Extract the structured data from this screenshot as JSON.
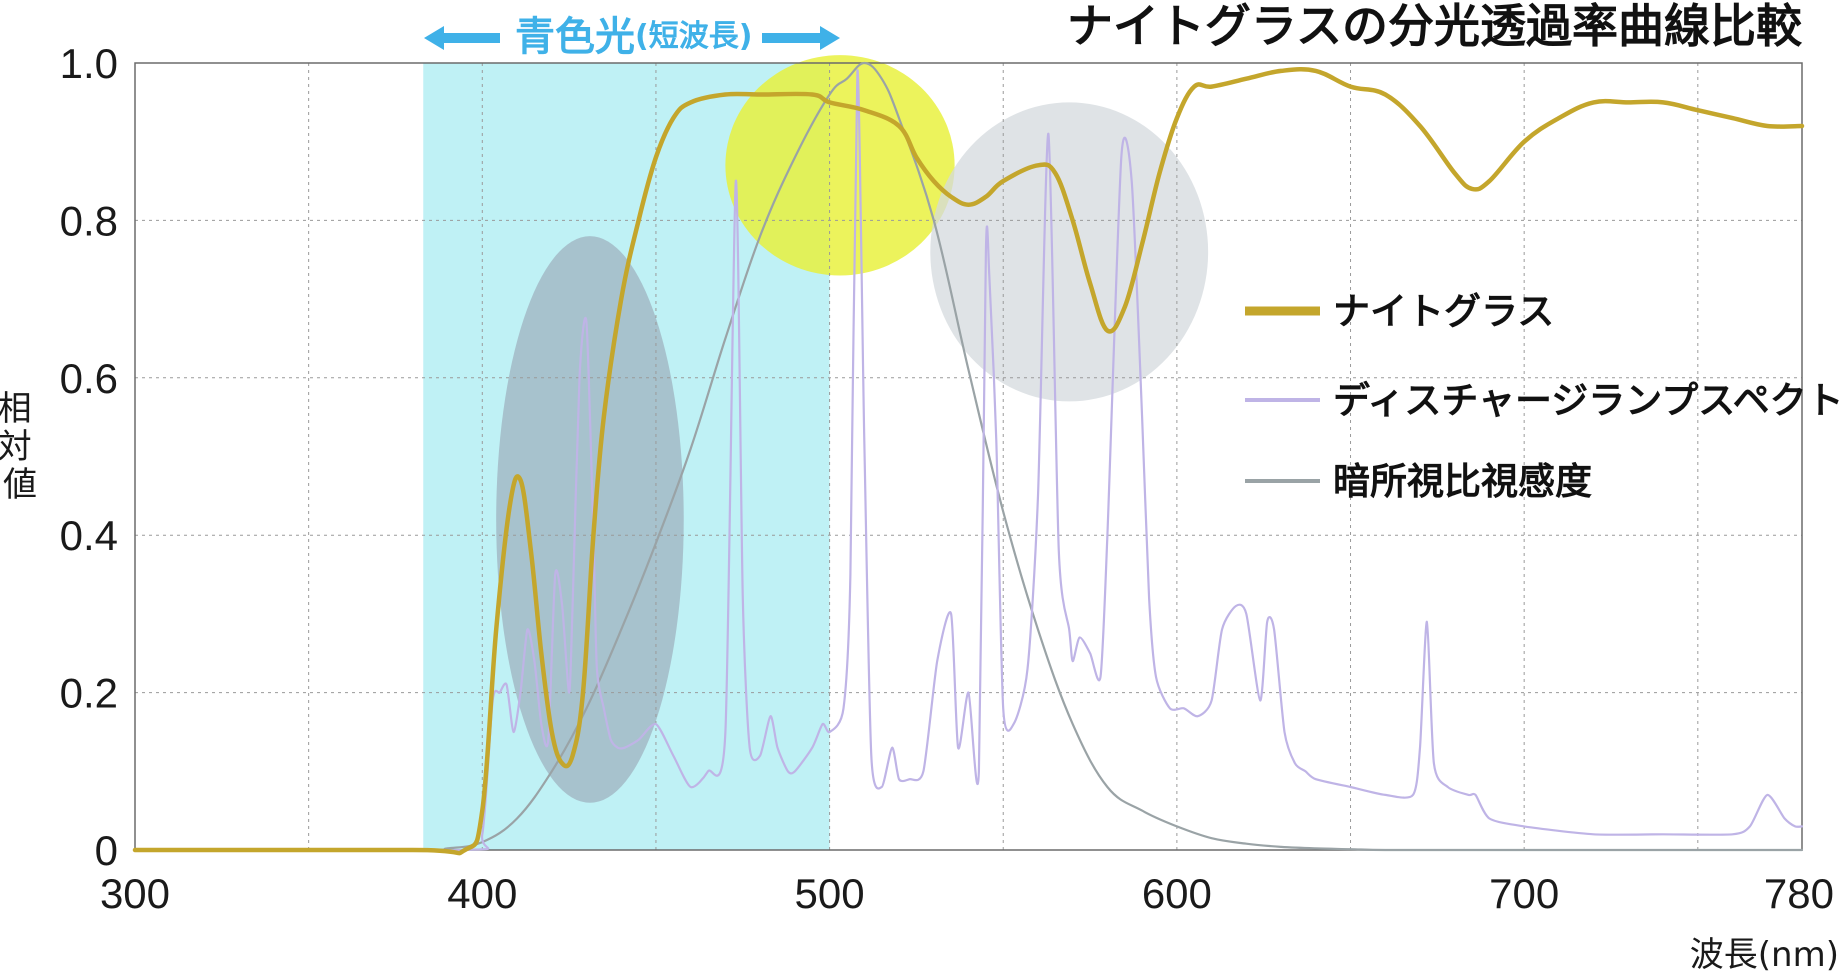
{
  "chart_data": {
    "type": "line",
    "title": "ナイトグラスの分光透過率曲線比較",
    "xlabel": "波長(nm)",
    "ylabel": "相対値",
    "xlim": [
      300,
      780
    ],
    "ylim": [
      0,
      1.0
    ],
    "x_ticks": [
      300,
      400,
      500,
      600,
      700,
      780
    ],
    "x_tick_labels": [
      "300",
      "400",
      "500",
      "600",
      "700",
      "780"
    ],
    "y_ticks": [
      0,
      0.2,
      0.4,
      0.6,
      0.8,
      1.0
    ],
    "y_tick_labels": [
      "0",
      "0.2",
      "0.4",
      "0.6",
      "0.8",
      "1.0"
    ],
    "grid": true,
    "legend_position": "right",
    "band": {
      "label": "青色光",
      "sublabel": "(短波長)",
      "x_range": [
        383,
        500
      ],
      "color": "#bff1f5"
    },
    "series": [
      {
        "name": "ナイトグラス",
        "color": "#c4a62c",
        "x": [
          300,
          380,
          395,
          400,
          404,
          408,
          411,
          414,
          417,
          420,
          423,
          426,
          429,
          432,
          435,
          440,
          445,
          450,
          455,
          460,
          470,
          480,
          495,
          500,
          510,
          520,
          525,
          530,
          535,
          540,
          545,
          550,
          560,
          565,
          570,
          575,
          580,
          585,
          590,
          595,
          600,
          605,
          610,
          620,
          630,
          640,
          650,
          660,
          670,
          680,
          685,
          690,
          700,
          710,
          720,
          730,
          740,
          750,
          760,
          770,
          780
        ],
        "y": [
          0.0,
          0.0,
          0.0,
          0.05,
          0.28,
          0.44,
          0.47,
          0.38,
          0.25,
          0.15,
          0.11,
          0.12,
          0.2,
          0.4,
          0.55,
          0.7,
          0.8,
          0.88,
          0.93,
          0.95,
          0.96,
          0.96,
          0.96,
          0.95,
          0.94,
          0.92,
          0.88,
          0.85,
          0.83,
          0.82,
          0.83,
          0.85,
          0.87,
          0.86,
          0.8,
          0.72,
          0.66,
          0.69,
          0.77,
          0.86,
          0.93,
          0.97,
          0.97,
          0.98,
          0.99,
          0.99,
          0.97,
          0.96,
          0.92,
          0.86,
          0.84,
          0.85,
          0.9,
          0.93,
          0.95,
          0.95,
          0.95,
          0.94,
          0.93,
          0.92,
          0.92
        ]
      },
      {
        "name": "ディスチャージランプスペクトル",
        "color": "#bfb4e6",
        "x": [
          300,
          395,
          400,
          403,
          405,
          407,
          409,
          411,
          413,
          415,
          417,
          419,
          421,
          423,
          425,
          426,
          428,
          430,
          432,
          433,
          435,
          437,
          439,
          441,
          445,
          450,
          455,
          460,
          465,
          470,
          473,
          475,
          477,
          480,
          483,
          485,
          488,
          490,
          495,
          498,
          500,
          504,
          506,
          508,
          510,
          512,
          515,
          518,
          520,
          523,
          527,
          531,
          535,
          537,
          540,
          543,
          545,
          546,
          548,
          550,
          553,
          557,
          560,
          563,
          566,
          569,
          570,
          572,
          575,
          578,
          580,
          584,
          587,
          590,
          592,
          594,
          598,
          602,
          606,
          610,
          613,
          617,
          620,
          624,
          626,
          628,
          631,
          634,
          637,
          640,
          650,
          660,
          668,
          670,
          672,
          674,
          678,
          684,
          686,
          690,
          700,
          720,
          740,
          760,
          765,
          770,
          775,
          778,
          780
        ],
        "y": [
          0.0,
          0.0,
          0.02,
          0.19,
          0.2,
          0.21,
          0.15,
          0.2,
          0.28,
          0.24,
          0.16,
          0.14,
          0.35,
          0.31,
          0.2,
          0.31,
          0.6,
          0.67,
          0.4,
          0.23,
          0.18,
          0.14,
          0.13,
          0.13,
          0.14,
          0.16,
          0.12,
          0.08,
          0.1,
          0.15,
          0.85,
          0.32,
          0.13,
          0.12,
          0.17,
          0.13,
          0.1,
          0.1,
          0.13,
          0.16,
          0.15,
          0.18,
          0.35,
          0.99,
          0.52,
          0.12,
          0.08,
          0.13,
          0.09,
          0.09,
          0.1,
          0.24,
          0.3,
          0.13,
          0.2,
          0.1,
          0.76,
          0.73,
          0.52,
          0.18,
          0.16,
          0.23,
          0.45,
          0.91,
          0.38,
          0.28,
          0.24,
          0.27,
          0.25,
          0.22,
          0.4,
          0.88,
          0.85,
          0.55,
          0.32,
          0.22,
          0.18,
          0.18,
          0.17,
          0.19,
          0.28,
          0.31,
          0.3,
          0.19,
          0.29,
          0.28,
          0.15,
          0.11,
          0.1,
          0.09,
          0.08,
          0.07,
          0.07,
          0.13,
          0.29,
          0.11,
          0.08,
          0.07,
          0.07,
          0.04,
          0.03,
          0.02,
          0.02,
          0.02,
          0.03,
          0.07,
          0.04,
          0.03,
          0.03
        ]
      },
      {
        "name": "暗所視比視感度",
        "color": "#9aa3a6",
        "x": [
          300,
          380,
          390,
          400,
          410,
          420,
          430,
          440,
          450,
          460,
          470,
          480,
          490,
          500,
          505,
          510,
          515,
          520,
          530,
          540,
          550,
          560,
          570,
          580,
          590,
          600,
          610,
          620,
          630,
          640,
          650,
          660,
          680,
          700,
          780
        ],
        "y": [
          0.0,
          0.0,
          0.002,
          0.01,
          0.04,
          0.1,
          0.18,
          0.28,
          0.39,
          0.51,
          0.65,
          0.78,
          0.88,
          0.96,
          0.98,
          1.0,
          0.98,
          0.93,
          0.8,
          0.61,
          0.43,
          0.28,
          0.16,
          0.08,
          0.05,
          0.03,
          0.015,
          0.008,
          0.004,
          0.002,
          0.001,
          0.0,
          0.0,
          0.0,
          0.0
        ]
      }
    ],
    "highlights": [
      {
        "center_x": 431,
        "center_y": 0.42,
        "rx_nm": 27,
        "ry": 0.36,
        "color": "#9fb2bf"
      },
      {
        "center_x": 503,
        "center_y": 0.87,
        "rx_nm": 33,
        "ry": 0.14,
        "color": "#e8f038"
      },
      {
        "center_x": 569,
        "center_y": 0.76,
        "rx_nm": 40,
        "ry": 0.19,
        "color": "#d4dade"
      }
    ]
  }
}
